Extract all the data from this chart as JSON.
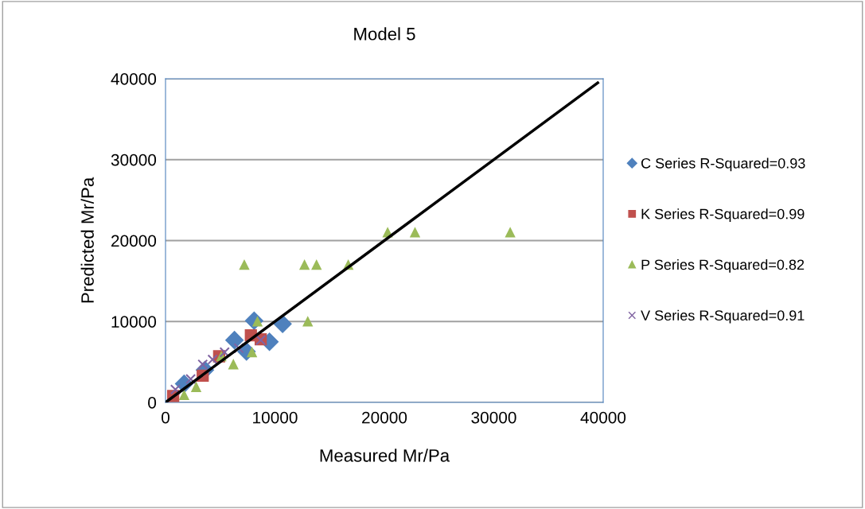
{
  "chart_data": {
    "type": "scatter",
    "title": "Model 5",
    "xlabel": "Measured Mr/Pa",
    "ylabel": "Predicted Mr/Pa",
    "xlim": [
      0,
      40000
    ],
    "ylim": [
      0,
      40000
    ],
    "xticks": [
      0,
      10000,
      20000,
      30000,
      40000
    ],
    "yticks": [
      0,
      10000,
      20000,
      30000,
      40000
    ],
    "grid": "y",
    "legend": "right",
    "series": [
      {
        "name": "C Series R-Squared=0.93",
        "color": "#4f81bd",
        "marker": "diamond",
        "x": [
          8100,
          10700,
          9500,
          6300,
          1700,
          3600,
          7400
        ],
        "values": [
          10100,
          9700,
          7500,
          7700,
          2300,
          4000,
          6300
        ]
      },
      {
        "name": "K Series R-Squared=0.99",
        "color": "#c0504d",
        "marker": "square",
        "x": [
          700,
          3400,
          4900,
          7800,
          8700
        ],
        "values": [
          800,
          3300,
          5700,
          8300,
          7800
        ]
      },
      {
        "name": "P Series R-Squared=0.82",
        "color": "#9bbb59",
        "marker": "triangle",
        "x": [
          7200,
          12700,
          13800,
          16700,
          20300,
          22800,
          31500,
          13000,
          8400,
          7900,
          6200,
          2800,
          1700,
          5100
        ],
        "values": [
          17000,
          17000,
          17000,
          17000,
          21000,
          21000,
          21000,
          10000,
          10000,
          6200,
          4700,
          1900,
          900,
          5700
        ]
      },
      {
        "name": "V Series R-Squared=0.91",
        "color": "#8064a2",
        "marker": "cross",
        "x": [
          900,
          3400,
          5400,
          6700,
          8700,
          4300,
          2300
        ],
        "values": [
          1600,
          4700,
          6200,
          6700,
          7700,
          5300,
          2900
        ]
      },
      {
        "type": "line",
        "color": "#000000",
        "marker": "none",
        "x": [
          0,
          39500
        ],
        "values": [
          0,
          39500
        ]
      }
    ]
  }
}
